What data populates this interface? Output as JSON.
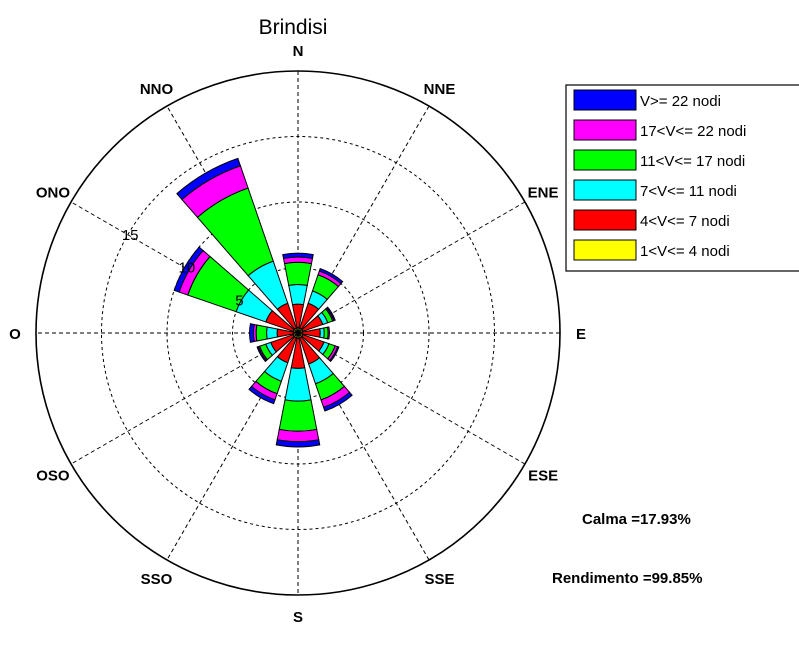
{
  "chart_data": {
    "type": "wind-rose",
    "title": "Brindisi",
    "directions": [
      "N",
      "NNE",
      "ENE",
      "E",
      "ESE",
      "SSE",
      "S",
      "SSO",
      "OSO",
      "O",
      "ONO",
      "NNO"
    ],
    "radial_ticks": [
      "5",
      "10",
      "15"
    ],
    "rmax": 20,
    "bins": [
      {
        "label": "1<V<= 4  nodi",
        "color": "#ffff00"
      },
      {
        "label": "4<V<= 7  nodi",
        "color": "#ff0000"
      },
      {
        "label": "7<V<= 11  nodi",
        "color": "#00ffff"
      },
      {
        "label": "11<V<= 17  nodi",
        "color": "#00ff00"
      },
      {
        "label": "17<V<= 22  nodi",
        "color": "#ff00ff"
      },
      {
        "label": "V>= 22  nodi",
        "color": "#0000ff"
      }
    ],
    "legend_order": [
      5,
      4,
      3,
      2,
      1,
      0
    ],
    "series": [
      {
        "direction": "N",
        "values": [
          0.4,
          1.8,
          1.5,
          1.7,
          0.4,
          0.3
        ]
      },
      {
        "direction": "NNE",
        "values": [
          0.4,
          2.0,
          1.0,
          1.3,
          0.3,
          0.2
        ]
      },
      {
        "direction": "ENE",
        "values": [
          0.4,
          1.6,
          0.4,
          0.4,
          0.1,
          0.1
        ]
      },
      {
        "direction": "E",
        "values": [
          0.3,
          1.4,
          0.3,
          0.3,
          0.1,
          0.0
        ]
      },
      {
        "direction": "ESE",
        "values": [
          0.4,
          1.7,
          0.4,
          0.5,
          0.2,
          0.1
        ]
      },
      {
        "direction": "SSE",
        "values": [
          0.4,
          2.1,
          1.6,
          1.3,
          0.6,
          0.3
        ]
      },
      {
        "direction": "S",
        "values": [
          0.4,
          2.3,
          2.5,
          2.3,
          0.8,
          0.4
        ]
      },
      {
        "direction": "SSO",
        "values": [
          0.4,
          2.0,
          1.5,
          1.0,
          0.5,
          0.3
        ]
      },
      {
        "direction": "OSO",
        "values": [
          0.4,
          1.8,
          0.4,
          0.5,
          0.1,
          0.1
        ]
      },
      {
        "direction": "O",
        "values": [
          0.3,
          1.3,
          0.8,
          0.8,
          0.2,
          0.3
        ]
      },
      {
        "direction": "ONO",
        "values": [
          0.4,
          2.2,
          2.4,
          3.9,
          0.7,
          0.4
        ]
      },
      {
        "direction": "NNO",
        "values": [
          0.4,
          2.0,
          3.4,
          5.9,
          1.8,
          0.6
        ]
      }
    ],
    "grid": true,
    "legend_position": "top-right"
  },
  "stats": {
    "calma": "Calma =17.93%",
    "rendimento": "Rendimento =99.85%"
  }
}
